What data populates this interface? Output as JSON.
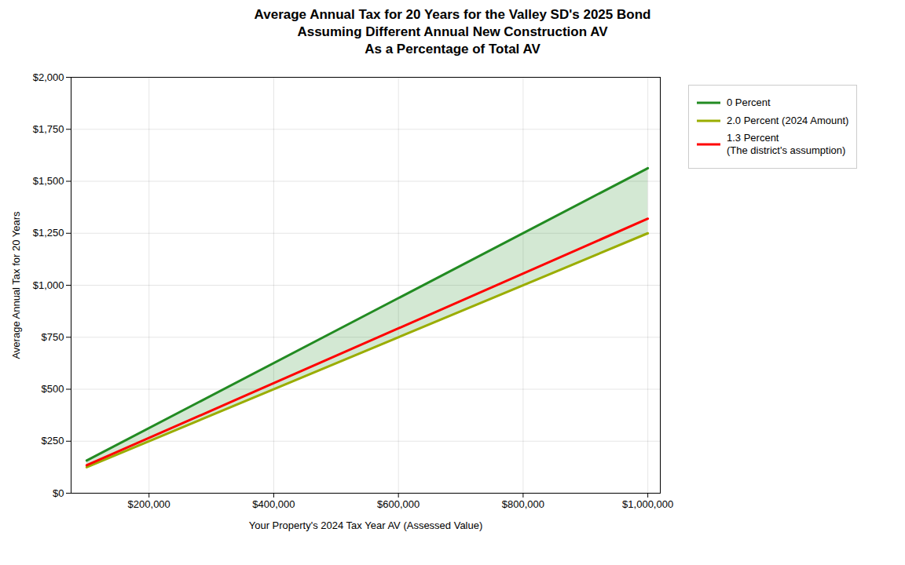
{
  "chart_data": {
    "type": "line",
    "title": "Average Annual Tax for 20 Years for the Valley SD's 2025 Bond\nAssuming Different Annual New Construction AV\nAs a Percentage of Total AV",
    "x_label": "Your Property's 2024 Tax Year AV (Assessed Value)",
    "y_label": "Average Annual Tax for 20 Years",
    "x": [
      100000,
      1000000
    ],
    "series": [
      {
        "name": "0 Percent",
        "color": "#228B22",
        "values": [
          157,
          1563
        ]
      },
      {
        "name": "2.0 Percent (2024 Amount)",
        "color": "#9aad00",
        "values": [
          125,
          1250
        ]
      },
      {
        "name": "1.3 Percent\n(The district's assumption)",
        "color": "#FF0000",
        "values": [
          134,
          1320
        ]
      }
    ],
    "xlim": [
      75000,
      1020000
    ],
    "ylim": [
      0,
      2000
    ],
    "xticks": [
      {
        "value": 200000,
        "label": "$200,000"
      },
      {
        "value": 400000,
        "label": "$400,000"
      },
      {
        "value": 600000,
        "label": "$600,000"
      },
      {
        "value": 800000,
        "label": "$800,000"
      },
      {
        "value": 1000000,
        "label": "$1,000,000"
      }
    ],
    "yticks": [
      {
        "value": 0,
        "label": "$0"
      },
      {
        "value": 250,
        "label": "$250"
      },
      {
        "value": 500,
        "label": "$500"
      },
      {
        "value": 750,
        "label": "$750"
      },
      {
        "value": 1000,
        "label": "$1,000"
      },
      {
        "value": 1250,
        "label": "$1,250"
      },
      {
        "value": 1500,
        "label": "$1,500"
      },
      {
        "value": 1750,
        "label": "$1,750"
      },
      {
        "value": 2000,
        "label": "$2,000"
      }
    ],
    "grid": true,
    "legend": "right"
  }
}
